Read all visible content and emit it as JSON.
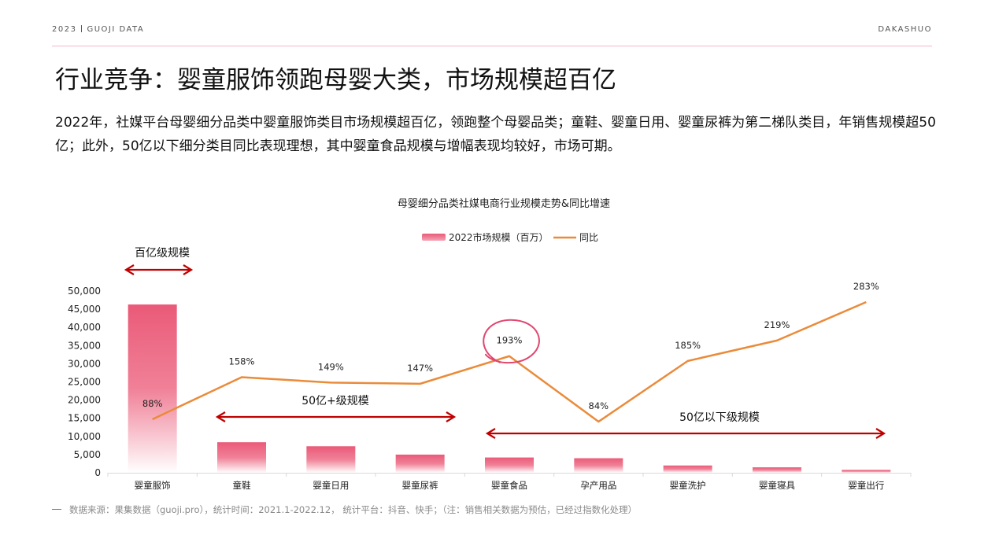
{
  "header": {
    "year": "2023",
    "brand": "GUOJI DATA",
    "right": "DAKASHUO"
  },
  "title": "行业竞争：婴童服饰领跑母婴大类，市场规模超百亿",
  "description": "2022年，社媒平台母婴细分品类中婴童服饰类目市场规模超百亿，领跑整个母婴品类；童鞋、婴童日用、婴童尿裤为第二梯队类目，年销售规模超50亿；此外，50亿以下细分类目同比表现理想，其中婴童食品规模与增幅表现均较好，市场可期。",
  "footer": "数据来源：果集数据（guoji.pro），统计时间：2021.1-2022.12，  统计平台：抖音、快手；（注：销售相关数据为预估，已经过指数化处理）",
  "colors": {
    "bar": "#ea5a78",
    "line": "#ea8b3a",
    "arrow": "#c00000",
    "circle": "#e0476f"
  },
  "chart_data": {
    "type": "bar",
    "title": "母婴细分品类社媒电商行业规模走势&同比增速",
    "categories": [
      "婴童服饰",
      "童鞋",
      "婴童日用",
      "婴童尿裤",
      "婴童食品",
      "孕产用品",
      "婴童洗护",
      "婴童寝具",
      "婴童出行"
    ],
    "series": [
      {
        "name": "2022市场规模（百万）",
        "type": "bar",
        "axis": "left",
        "values": [
          46300,
          8400,
          7300,
          5000,
          4200,
          4000,
          2000,
          1500,
          800
        ]
      },
      {
        "name": "同比",
        "type": "line",
        "axis": "right",
        "values": [
          88,
          158,
          149,
          147,
          193,
          84,
          185,
          219,
          283
        ],
        "labels": [
          "88%",
          "158%",
          "149%",
          "147%",
          "193%",
          "84%",
          "185%",
          "219%",
          "283%"
        ]
      }
    ],
    "yTicks": [
      "0",
      "5,000",
      "10,000",
      "15,000",
      "20,000",
      "25,000",
      "30,000",
      "35,000",
      "40,000",
      "45,000",
      "50,000"
    ],
    "ylim": [
      0,
      50000
    ],
    "y2lim": [
      0,
      300
    ],
    "legend": "top-center",
    "annotations": [
      {
        "text": "百亿级规模",
        "from": 0,
        "to": 0
      },
      {
        "text": "50亿+级规模",
        "from": 1,
        "to": 3
      },
      {
        "text": "50亿以下级规模",
        "from": 4,
        "to": 8
      }
    ],
    "highlight": 4
  }
}
